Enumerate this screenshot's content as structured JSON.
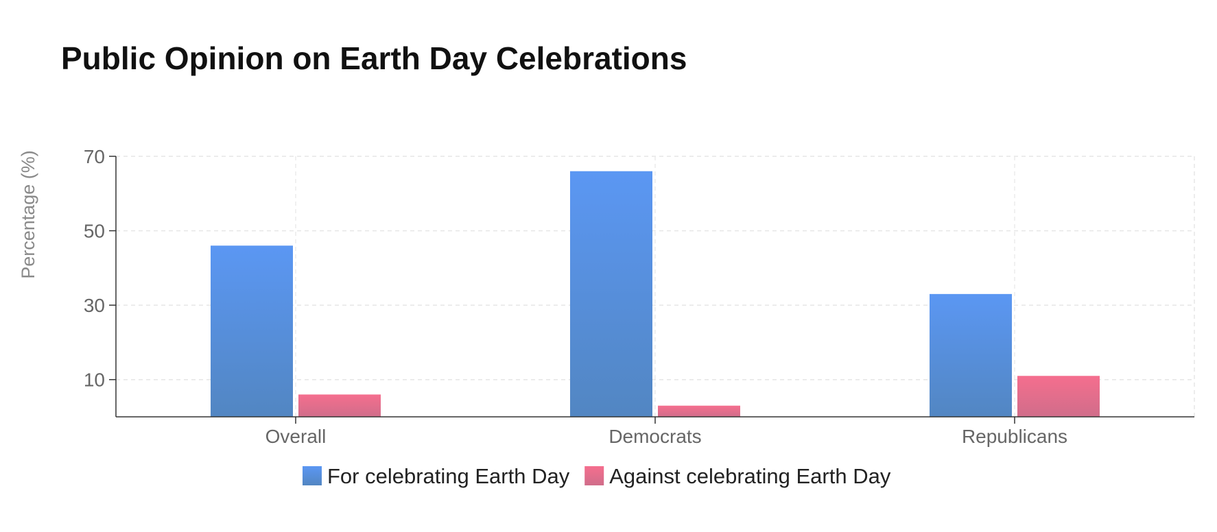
{
  "chart_data": {
    "type": "bar",
    "title": "Public Opinion on Earth Day Celebrations",
    "xlabel": "",
    "ylabel": "Percentage (%)",
    "categories": [
      "Overall",
      "Democrats",
      "Republicans"
    ],
    "series": [
      {
        "name": "For celebrating Earth Day",
        "values": [
          46,
          66,
          33
        ],
        "color": "#5b97f3"
      },
      {
        "name": "Against celebrating Earth Day",
        "values": [
          6,
          3,
          11
        ],
        "color": "#f56e8e"
      }
    ],
    "yticks": [
      10,
      30,
      50,
      70
    ],
    "ylim": [
      0,
      70
    ],
    "grid": true,
    "legend_position": "bottom"
  }
}
